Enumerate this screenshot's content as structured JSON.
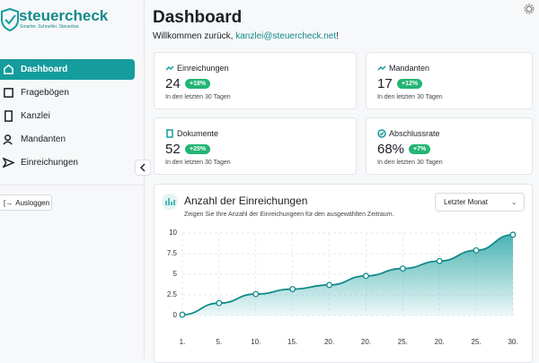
{
  "sidebar": {
    "logo": "steuercheck",
    "tagline": "Smarter. Schneller. Steuerbar.",
    "nav": [
      "Dashboard",
      "Fragebögen",
      "Kanzlei",
      "Mandanten",
      "Einreichungen"
    ],
    "logout": "Ausloggen"
  },
  "header": {
    "title": "Dashboard",
    "welcome": "Willkommen zurück,",
    "email": "kanzlei@steuercheck.net",
    "punct": "!"
  },
  "cards": [
    {
      "label": "Einreichungen",
      "value": "24",
      "badge": "+18%",
      "subtitle": "In den letzten 30 Tagen"
    },
    {
      "label": "Mandanten",
      "value": "17",
      "badge": "+12%",
      "subtitle": "In den letzten 30 Tagen"
    },
    {
      "label": "Dokumente",
      "value": "52",
      "badge": "+25%",
      "subtitle": "In den letzten 30 Tagen"
    },
    {
      "label": "Abschlussrate",
      "value": "68%",
      "badge": "+7%",
      "subtitle": "In den letzten 30 Tagen"
    }
  ],
  "chart_card": {
    "dropdown": "Letzter Monat"
  },
  "chart_data": {
    "type": "area",
    "title": "Anzahl der Einreichungen",
    "subtitle": "Zeigen Sie Ihre Anzahl der Einreichungeen für den ausgewählten Zeitraum.",
    "categories": [
      "1.",
      "5.",
      "10.",
      "15.",
      "20.",
      "20.",
      "25.",
      "20.",
      "25.",
      "30."
    ],
    "values": [
      0.1,
      1.5,
      2.6,
      3.2,
      3.7,
      4.8,
      5.7,
      6.6,
      7.9,
      9.8
    ],
    "color": "#138a8a",
    "ylim": [
      0,
      10
    ],
    "yticks": [
      0,
      2.5,
      5,
      7.5,
      10
    ],
    "grid": true
  }
}
